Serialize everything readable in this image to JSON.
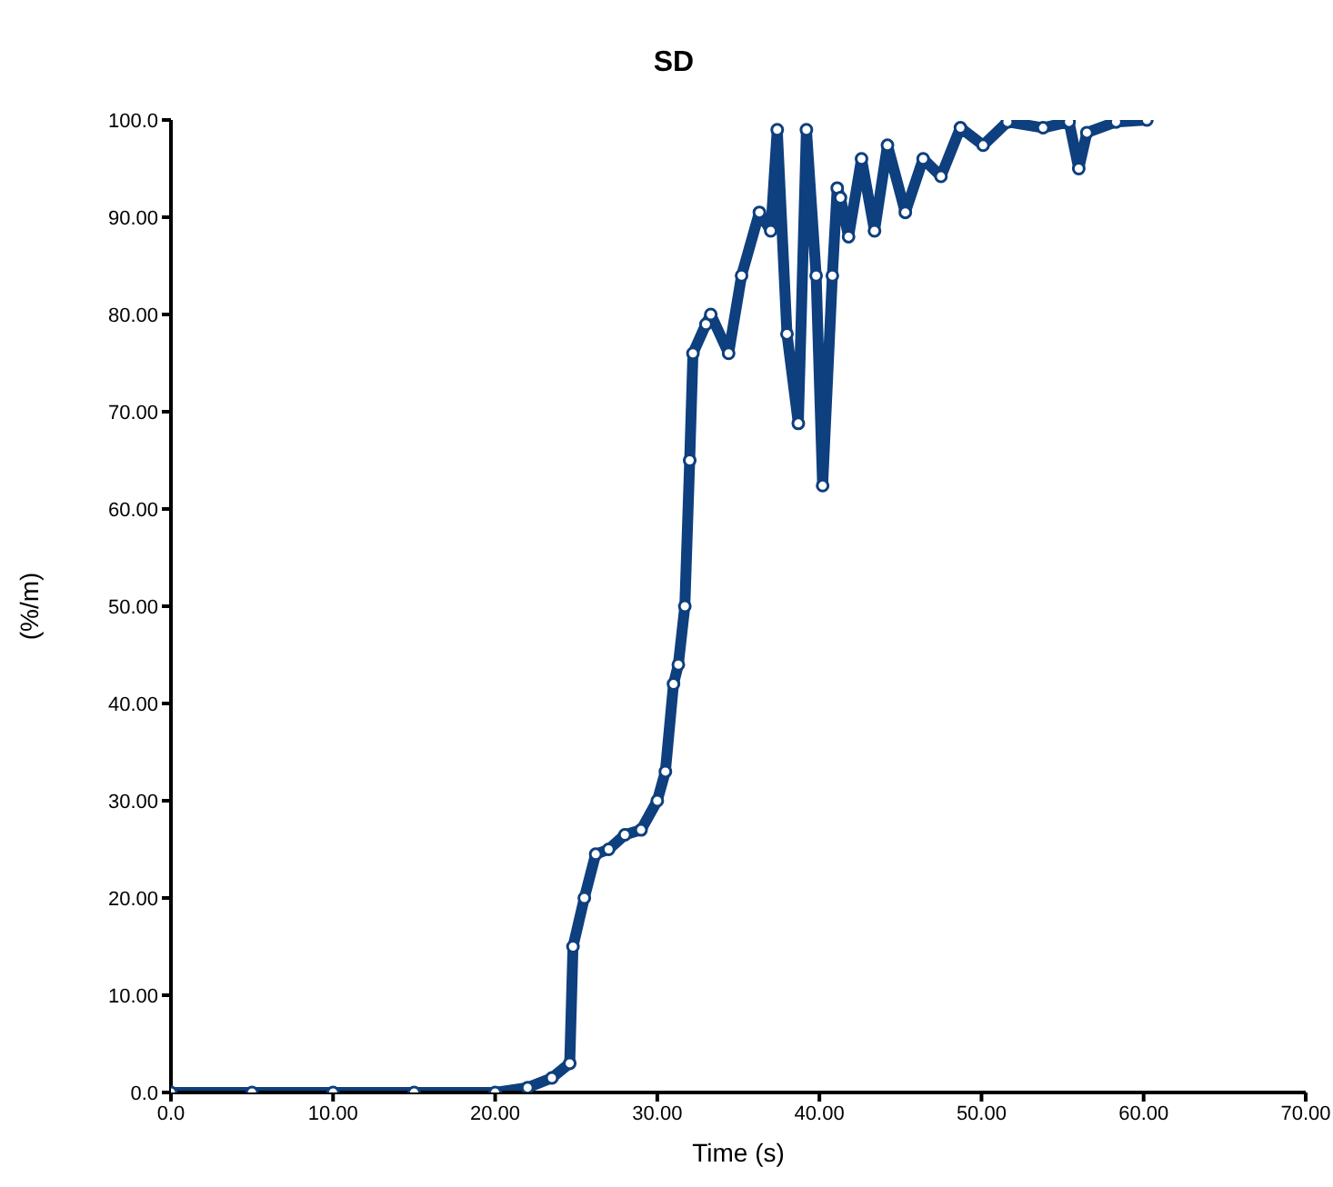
{
  "chart_data": {
    "type": "line",
    "title": "SD",
    "xlabel": "Time (s)",
    "ylabel": "(%/m)",
    "marker": "circle",
    "line_style": "solid",
    "xlim": [
      0,
      70
    ],
    "ylim": [
      0,
      100
    ],
    "xticks": [
      {
        "value": 0,
        "label": "0.0"
      },
      {
        "value": 10,
        "label": "10.00"
      },
      {
        "value": 20,
        "label": "20.00"
      },
      {
        "value": 30,
        "label": "30.00"
      },
      {
        "value": 40,
        "label": "40.00"
      },
      {
        "value": 50,
        "label": "50.00"
      },
      {
        "value": 60,
        "label": "60.00"
      },
      {
        "value": 70,
        "label": "70.00"
      }
    ],
    "yticks": [
      {
        "value": 0,
        "label": "0.0"
      },
      {
        "value": 10,
        "label": "10.00"
      },
      {
        "value": 20,
        "label": "20.00"
      },
      {
        "value": 30,
        "label": "30.00"
      },
      {
        "value": 40,
        "label": "40.00"
      },
      {
        "value": 50,
        "label": "50.00"
      },
      {
        "value": 60,
        "label": "60.00"
      },
      {
        "value": 70,
        "label": "70.00"
      },
      {
        "value": 80,
        "label": "80.00"
      },
      {
        "value": 90,
        "label": "90.00"
      },
      {
        "value": 100,
        "label": "100.0"
      }
    ],
    "series": [
      {
        "color": "#0e3f7e",
        "x": [
          0,
          5,
          10,
          15,
          20,
          22,
          23.5,
          24.6,
          24.8,
          25.5,
          26.2,
          27,
          28,
          29,
          30,
          30.5,
          31,
          31.3,
          31.7,
          32,
          32.2,
          33,
          33.3,
          34.4,
          35.2,
          36.3,
          37,
          37.4,
          38,
          38.7,
          39.2,
          39.8,
          40.2,
          40.8,
          41.1,
          41.3,
          41.8,
          42.6,
          43.4,
          44.2,
          45.3,
          46.4,
          47.5,
          48.7,
          50.1,
          51.6,
          53.8,
          55.4,
          56,
          56.5,
          58.3,
          60.2
        ],
        "values": [
          0,
          0,
          0,
          0,
          0,
          0.5,
          1.5,
          3,
          15,
          20,
          24.5,
          25,
          26.5,
          27,
          30,
          33,
          42,
          44,
          50,
          65,
          76,
          79,
          80,
          76,
          84,
          90.5,
          88.6,
          99,
          78,
          68.8,
          99,
          84,
          62.4,
          84,
          93,
          92,
          88,
          96,
          88.6,
          97.4,
          90.5,
          96,
          94.2,
          99.2,
          97.4,
          99.8,
          99.2,
          99.8,
          95,
          98.7,
          99.8,
          100
        ]
      }
    ]
  }
}
